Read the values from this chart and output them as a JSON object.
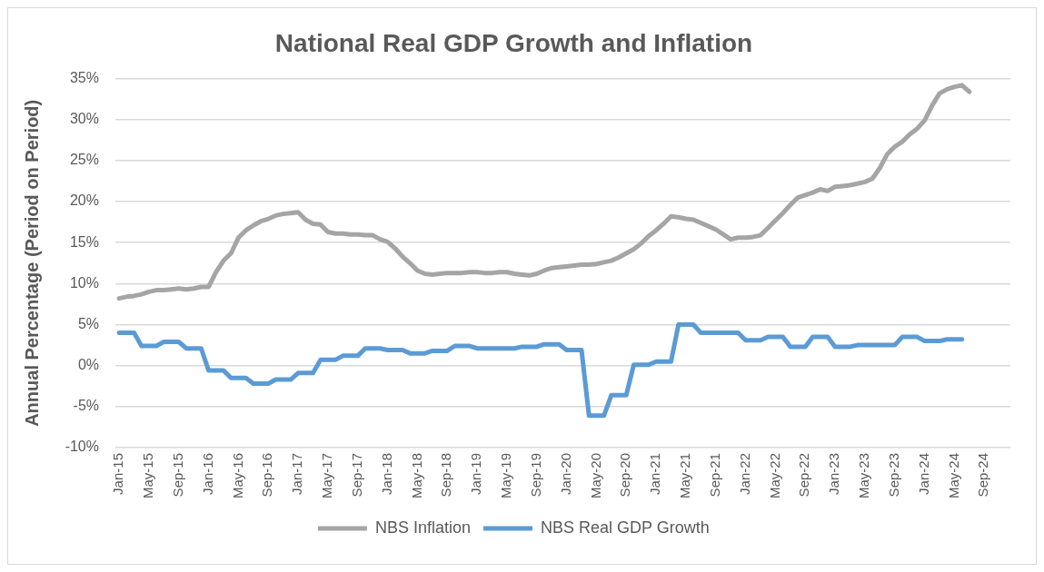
{
  "chart_data": {
    "type": "line",
    "title": "National Real GDP Growth and Inflation",
    "ylabel": "Annual Percentage (Period on Period)",
    "categories": [
      "Jan-15",
      null,
      null,
      null,
      "May-15",
      null,
      null,
      null,
      "Sep-15",
      null,
      null,
      null,
      "Jan-16",
      null,
      null,
      null,
      "May-16",
      null,
      null,
      null,
      "Sep-16",
      null,
      null,
      null,
      "Jan-17",
      null,
      null,
      null,
      "May-17",
      null,
      null,
      null,
      "Sep-17",
      null,
      null,
      null,
      "Jan-18",
      null,
      null,
      null,
      "May-18",
      null,
      null,
      null,
      "Sep-18",
      null,
      null,
      null,
      "Jan-19",
      null,
      null,
      null,
      "May-19",
      null,
      null,
      null,
      "Sep-19",
      null,
      null,
      null,
      "Jan-20",
      null,
      null,
      null,
      "May-20",
      null,
      null,
      null,
      "Sep-20",
      null,
      null,
      null,
      "Jan-21",
      null,
      null,
      null,
      "May-21",
      null,
      null,
      null,
      "Sep-21",
      null,
      null,
      null,
      "Jan-22",
      null,
      null,
      null,
      "May-22",
      null,
      null,
      null,
      "Sep-22",
      null,
      null,
      null,
      "Jan-23",
      null,
      null,
      null,
      "May-23",
      null,
      null,
      null,
      "Sep-23",
      null,
      null,
      null,
      "Jan-24",
      null,
      null,
      null,
      "May-24",
      null,
      null,
      null,
      "Sep-24",
      null,
      null,
      null
    ],
    "series": [
      {
        "name": "NBS Inflation",
        "color": "#a5a5a5",
        "values": [
          8.2,
          8.4,
          8.5,
          8.7,
          9.0,
          9.2,
          9.2,
          9.3,
          9.4,
          9.3,
          9.4,
          9.6,
          9.6,
          11.4,
          12.8,
          13.7,
          15.6,
          16.5,
          17.1,
          17.6,
          17.9,
          18.3,
          18.5,
          18.6,
          18.7,
          17.8,
          17.3,
          17.2,
          16.3,
          16.1,
          16.1,
          16.0,
          16.0,
          15.9,
          15.9,
          15.4,
          15.1,
          14.3,
          13.3,
          12.5,
          11.6,
          11.2,
          11.1,
          11.2,
          11.3,
          11.3,
          11.3,
          11.4,
          11.4,
          11.3,
          11.3,
          11.4,
          11.4,
          11.2,
          11.1,
          11.0,
          11.2,
          11.6,
          11.9,
          12.0,
          12.1,
          12.2,
          12.3,
          12.3,
          12.4,
          12.6,
          12.8,
          13.2,
          13.7,
          14.2,
          14.9,
          15.8,
          16.5,
          17.3,
          18.2,
          18.1,
          17.9,
          17.8,
          17.4,
          17.0,
          16.6,
          16.0,
          15.4,
          15.6,
          15.6,
          15.7,
          15.9,
          16.8,
          17.7,
          18.6,
          19.6,
          20.5,
          20.8,
          21.1,
          21.5,
          21.3,
          21.8,
          21.9,
          22.0,
          22.2,
          22.4,
          22.8,
          24.1,
          25.8,
          26.7,
          27.3,
          28.2,
          28.9,
          29.9,
          31.7,
          33.2,
          33.7,
          34.0,
          34.2,
          33.4,
          null,
          null,
          null,
          null,
          null
        ]
      },
      {
        "name": "NBS Real GDP Growth",
        "color": "#5b9bd5",
        "values": [
          4.0,
          4.0,
          4.0,
          2.4,
          2.4,
          2.4,
          2.9,
          2.9,
          2.9,
          2.1,
          2.1,
          2.1,
          -0.6,
          -0.6,
          -0.6,
          -1.5,
          -1.5,
          -1.5,
          -2.2,
          -2.2,
          -2.2,
          -1.7,
          -1.7,
          -1.7,
          -0.9,
          -0.9,
          -0.9,
          0.7,
          0.7,
          0.7,
          1.2,
          1.2,
          1.2,
          2.1,
          2.1,
          2.1,
          1.9,
          1.9,
          1.9,
          1.5,
          1.5,
          1.5,
          1.8,
          1.8,
          1.8,
          2.4,
          2.4,
          2.4,
          2.1,
          2.1,
          2.1,
          2.1,
          2.1,
          2.1,
          2.3,
          2.3,
          2.3,
          2.6,
          2.6,
          2.6,
          1.9,
          1.9,
          1.9,
          -6.1,
          -6.1,
          -6.1,
          -3.6,
          -3.6,
          -3.6,
          0.1,
          0.1,
          0.1,
          0.5,
          0.5,
          0.5,
          5.0,
          5.0,
          5.0,
          4.0,
          4.0,
          4.0,
          4.0,
          4.0,
          4.0,
          3.1,
          3.1,
          3.1,
          3.5,
          3.5,
          3.5,
          2.3,
          2.3,
          2.3,
          3.5,
          3.5,
          3.5,
          2.3,
          2.3,
          2.3,
          2.5,
          2.5,
          2.5,
          2.5,
          2.5,
          2.5,
          3.5,
          3.5,
          3.5,
          3.0,
          3.0,
          3.0,
          3.2,
          3.2,
          3.2,
          null,
          null,
          null,
          null,
          null,
          null
        ]
      }
    ],
    "ylim": [
      -10,
      35
    ],
    "yticks": [
      {
        "value": -10,
        "label": "-10%"
      },
      {
        "value": -5,
        "label": "-5%"
      },
      {
        "value": 0,
        "label": "0%"
      },
      {
        "value": 5,
        "label": "5%"
      },
      {
        "value": 10,
        "label": "10%"
      },
      {
        "value": 15,
        "label": "15%"
      },
      {
        "value": 20,
        "label": "20%"
      },
      {
        "value": 25,
        "label": "25%"
      },
      {
        "value": 30,
        "label": "30%"
      },
      {
        "value": 35,
        "label": "35%"
      }
    ],
    "grid": "y",
    "legend": "bottom"
  }
}
